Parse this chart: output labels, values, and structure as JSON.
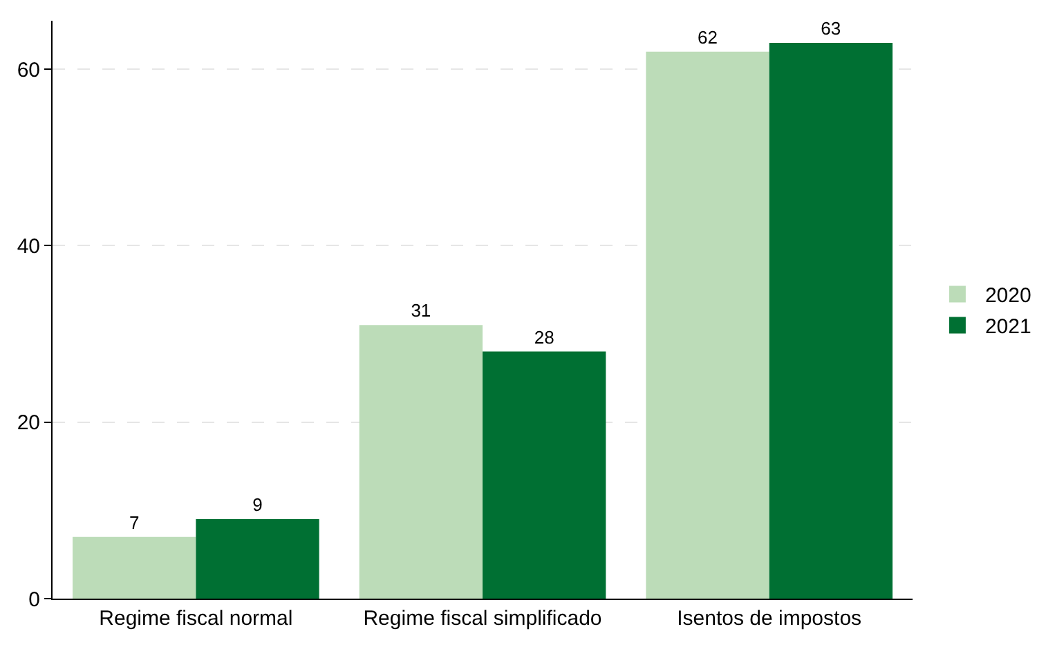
{
  "chart_data": {
    "type": "bar",
    "categories": [
      "Regime fiscal normal",
      "Regime fiscal simplificado",
      "Isentos de impostos"
    ],
    "series": [
      {
        "name": "2020",
        "color": "#bcdcb8",
        "values": [
          7,
          31,
          62
        ]
      },
      {
        "name": "2021",
        "color": "#007033",
        "values": [
          9,
          28,
          63
        ]
      }
    ],
    "ylim": [
      0,
      65.5
    ],
    "yticks": [
      0,
      20,
      40,
      60
    ],
    "grid": "y",
    "legend": "right",
    "data_labels": true
  }
}
